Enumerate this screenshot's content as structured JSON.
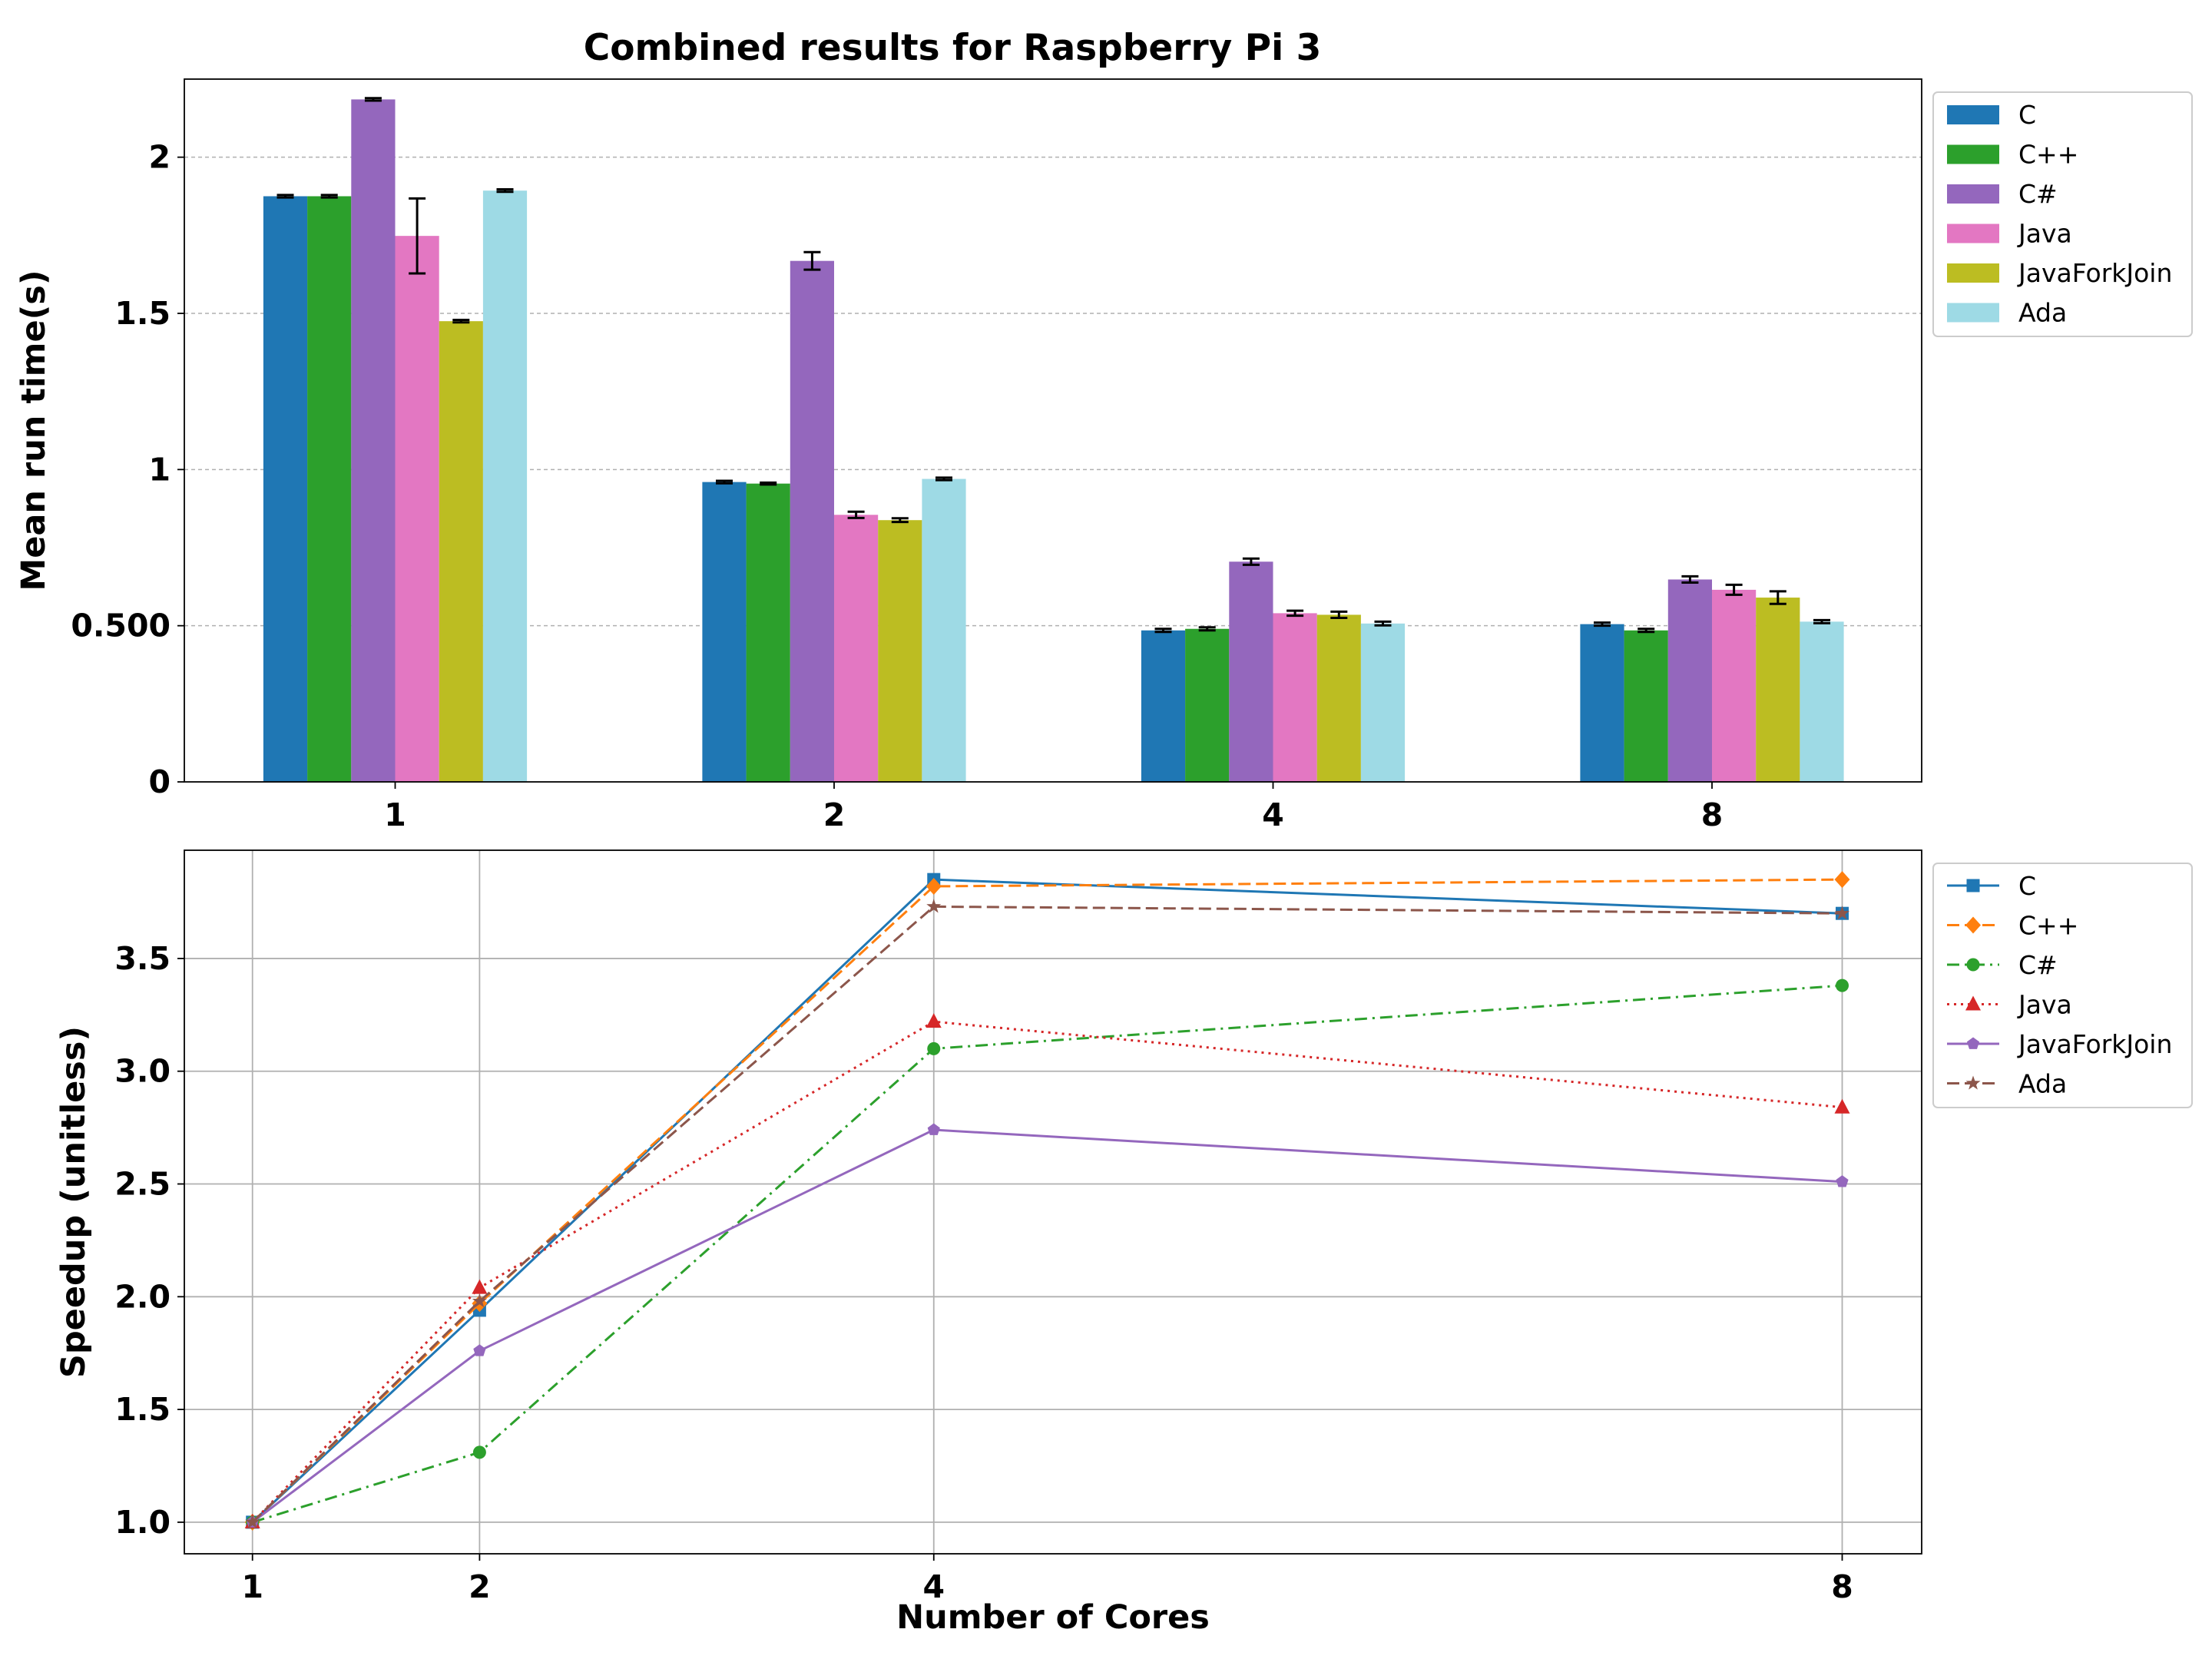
{
  "figure": {
    "title": "Combined results for Raspberry Pi 3"
  },
  "chart_data": [
    {
      "type": "bar",
      "title": "Combined results for Raspberry Pi 3",
      "xlabel": "",
      "ylabel": "Mean run time(s)",
      "categories": [
        "1",
        "2",
        "4",
        "8"
      ],
      "ylim": [
        0,
        2.25
      ],
      "yticks": [
        0,
        0.5,
        1,
        1.5,
        2
      ],
      "ytick_labels": [
        "0",
        "0.500",
        "1",
        "1.5",
        "2"
      ],
      "grid": "horizontal-dashed",
      "legend_position": "outside-right",
      "error_bars": true,
      "series": [
        {
          "name": "C",
          "color": "#1f77b4",
          "values": [
            1.875,
            0.96,
            0.485,
            0.505
          ],
          "errors": [
            0.004,
            0.004,
            0.005,
            0.005
          ]
        },
        {
          "name": "C++",
          "color": "#2ca02c",
          "values": [
            1.875,
            0.955,
            0.49,
            0.485
          ],
          "errors": [
            0.004,
            0.003,
            0.005,
            0.005
          ]
        },
        {
          "name": "C#",
          "color": "#9467bd",
          "values": [
            2.185,
            1.668,
            0.705,
            0.648
          ],
          "errors": [
            0.004,
            0.028,
            0.01,
            0.01
          ]
        },
        {
          "name": "Java",
          "color": "#e377c2",
          "values": [
            1.748,
            0.855,
            0.54,
            0.615
          ],
          "errors": [
            0.12,
            0.01,
            0.008,
            0.016
          ]
        },
        {
          "name": "JavaForkJoin",
          "color": "#bcbd22",
          "values": [
            1.475,
            0.838,
            0.535,
            0.59
          ],
          "errors": [
            0.004,
            0.006,
            0.01,
            0.02
          ]
        },
        {
          "name": "Ada",
          "color": "#9edae5",
          "values": [
            1.893,
            0.97,
            0.507,
            0.513
          ],
          "errors": [
            0.004,
            0.004,
            0.006,
            0.005
          ]
        }
      ]
    },
    {
      "type": "line",
      "title": "",
      "xlabel": "Number of Cores",
      "ylabel": "Speedup (unitless)",
      "x": [
        1,
        2,
        4,
        8
      ],
      "xlim": [
        0.7,
        8.35
      ],
      "ylim": [
        0.86,
        3.98
      ],
      "xticks": [
        1,
        2,
        4,
        8
      ],
      "yticks": [
        1.0,
        1.5,
        2.0,
        2.5,
        3.0,
        3.5
      ],
      "ytick_labels": [
        "1.0",
        "1.5",
        "2.0",
        "2.5",
        "3.0",
        "3.5"
      ],
      "grid": "both",
      "legend_position": "outside-right",
      "series": [
        {
          "name": "C",
          "color": "#1f77b4",
          "linestyle": "solid",
          "marker": "square",
          "values": [
            1.0,
            1.94,
            3.85,
            3.7
          ]
        },
        {
          "name": "C++",
          "color": "#ff7f0e",
          "linestyle": "dashed",
          "marker": "diamond",
          "values": [
            1.0,
            1.97,
            3.82,
            3.85
          ]
        },
        {
          "name": "C#",
          "color": "#2ca02c",
          "linestyle": "dashdot",
          "marker": "circle",
          "values": [
            1.0,
            1.31,
            3.1,
            3.38
          ]
        },
        {
          "name": "Java",
          "color": "#d62728",
          "linestyle": "dotted",
          "marker": "triangle",
          "values": [
            1.0,
            2.04,
            3.22,
            2.84
          ]
        },
        {
          "name": "JavaForkJoin",
          "color": "#9467bd",
          "linestyle": "solid",
          "marker": "pentagon",
          "values": [
            1.0,
            1.76,
            2.74,
            2.51
          ]
        },
        {
          "name": "Ada",
          "color": "#8c564b",
          "linestyle": "dashed",
          "marker": "star",
          "values": [
            1.0,
            1.98,
            3.73,
            3.7
          ]
        }
      ]
    }
  ]
}
